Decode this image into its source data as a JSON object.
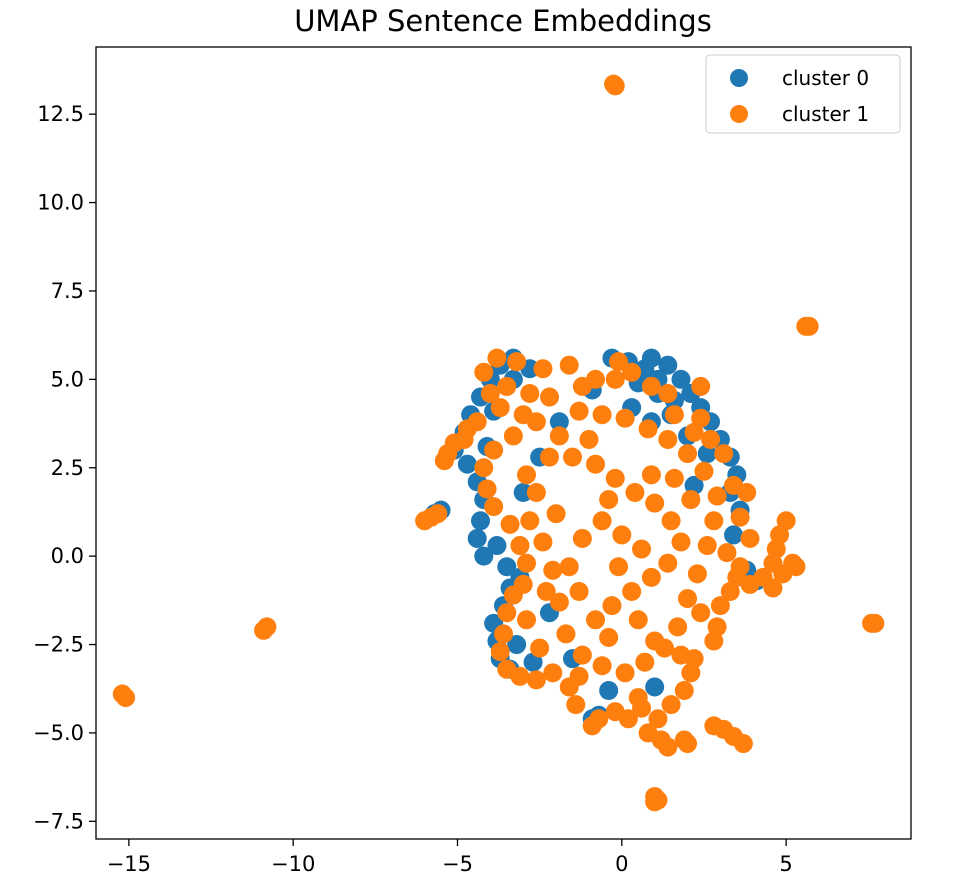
{
  "chart_data": {
    "type": "scatter",
    "title": "UMAP Sentence Embeddings",
    "xlabel": "",
    "ylabel": "",
    "xlim": [
      -16.0,
      8.8
    ],
    "ylim": [
      -8.0,
      14.4
    ],
    "xticks": [
      -15,
      -10,
      -5,
      0,
      5
    ],
    "xtick_labels": [
      "−15",
      "−10",
      "−5",
      "0",
      "5"
    ],
    "yticks": [
      -7.5,
      -5.0,
      -2.5,
      0.0,
      2.5,
      5.0,
      7.5,
      10.0,
      12.5
    ],
    "ytick_labels": [
      "−7.5",
      "−5.0",
      "−2.5",
      "0.0",
      "2.5",
      "5.0",
      "7.5",
      "10.0",
      "12.5"
    ],
    "grid": false,
    "legend_position": "top-right",
    "series": [
      {
        "name": "cluster 0",
        "color": "#1f77b4",
        "points": [
          [
            -3.3,
            5.6
          ],
          [
            -3.7,
            5.4
          ],
          [
            -4.0,
            5.0
          ],
          [
            -4.3,
            4.5
          ],
          [
            -4.6,
            4.0
          ],
          [
            -4.8,
            3.5
          ],
          [
            -5.1,
            3.0
          ],
          [
            -4.7,
            2.6
          ],
          [
            -4.4,
            2.1
          ],
          [
            -4.2,
            1.6
          ],
          [
            -4.3,
            1.0
          ],
          [
            -4.4,
            0.5
          ],
          [
            -4.2,
            0.0
          ],
          [
            -3.8,
            0.3
          ],
          [
            -3.5,
            -0.3
          ],
          [
            -3.4,
            -0.9
          ],
          [
            -3.6,
            -1.4
          ],
          [
            -3.9,
            -1.9
          ],
          [
            -3.8,
            -2.4
          ],
          [
            -3.7,
            -2.9
          ],
          [
            -3.4,
            -3.2
          ],
          [
            -5.7,
            1.2
          ],
          [
            -5.5,
            1.3
          ],
          [
            -0.3,
            5.6
          ],
          [
            0.2,
            5.5
          ],
          [
            0.9,
            5.6
          ],
          [
            1.4,
            5.4
          ],
          [
            1.8,
            5.0
          ],
          [
            2.1,
            4.6
          ],
          [
            2.4,
            4.2
          ],
          [
            2.7,
            3.8
          ],
          [
            3.0,
            3.3
          ],
          [
            3.3,
            2.8
          ],
          [
            3.5,
            2.3
          ],
          [
            3.3,
            1.8
          ],
          [
            3.6,
            1.3
          ],
          [
            3.4,
            0.6
          ],
          [
            3.8,
            -0.4
          ],
          [
            3.9,
            -0.6
          ],
          [
            4.1,
            -0.7
          ],
          [
            0.7,
            5.3
          ],
          [
            1.1,
            5.0
          ],
          [
            -0.9,
            4.7
          ],
          [
            1.6,
            4.4
          ],
          [
            -1.9,
            3.8
          ],
          [
            0.5,
            4.9
          ],
          [
            -0.9,
            -4.6
          ],
          [
            -0.7,
            -4.5
          ],
          [
            -3.1,
            -0.6
          ],
          [
            -2.5,
            2.8
          ],
          [
            -3.3,
            5.0
          ],
          [
            -2.8,
            5.3
          ],
          [
            0.3,
            4.2
          ],
          [
            0.9,
            3.8
          ],
          [
            1.5,
            4.0
          ],
          [
            2.0,
            3.4
          ],
          [
            2.6,
            2.9
          ],
          [
            -1.5,
            -2.9
          ],
          [
            -2.2,
            -1.6
          ],
          [
            -3.0,
            1.8
          ],
          [
            -0.4,
            -3.8
          ],
          [
            1.0,
            -3.7
          ],
          [
            2.2,
            2.0
          ],
          [
            1.1,
            4.6
          ],
          [
            -3.9,
            4.1
          ],
          [
            -4.1,
            3.1
          ],
          [
            -3.2,
            -2.5
          ],
          [
            -2.7,
            -3.0
          ]
        ]
      },
      {
        "name": "cluster 1",
        "color": "#ff7f0e",
        "points": [
          [
            -15.2,
            -3.9
          ],
          [
            -15.1,
            -4.0
          ],
          [
            -10.8,
            -2.0
          ],
          [
            -10.9,
            -2.1
          ],
          [
            -0.2,
            13.3
          ],
          [
            -0.25,
            13.35
          ],
          [
            5.6,
            6.5
          ],
          [
            5.7,
            6.5
          ],
          [
            7.6,
            -1.9
          ],
          [
            7.7,
            -1.9
          ],
          [
            1.0,
            -6.8
          ],
          [
            1.1,
            -6.9
          ],
          [
            1.0,
            -6.95
          ],
          [
            -6.0,
            1.0
          ],
          [
            -5.8,
            1.1
          ],
          [
            -5.6,
            1.2
          ],
          [
            2.8,
            -4.8
          ],
          [
            3.1,
            -4.9
          ],
          [
            3.4,
            -5.1
          ],
          [
            3.7,
            -5.3
          ],
          [
            1.9,
            -5.2
          ],
          [
            2.0,
            -5.3
          ],
          [
            5.0,
            1.0
          ],
          [
            4.8,
            0.6
          ],
          [
            4.7,
            0.2
          ],
          [
            4.6,
            -0.2
          ],
          [
            5.2,
            -0.2
          ],
          [
            4.9,
            -0.5
          ],
          [
            4.6,
            -0.9
          ],
          [
            5.3,
            -0.3
          ],
          [
            2.4,
            4.8
          ],
          [
            -0.1,
            5.5
          ],
          [
            -1.6,
            5.4
          ],
          [
            -2.4,
            5.3
          ],
          [
            -3.2,
            5.5
          ],
          [
            -3.8,
            5.6
          ],
          [
            -4.2,
            5.2
          ],
          [
            -4.0,
            4.6
          ],
          [
            -3.7,
            4.2
          ],
          [
            -4.4,
            3.8
          ],
          [
            -4.8,
            3.3
          ],
          [
            -5.3,
            2.9
          ],
          [
            -5.4,
            2.7
          ],
          [
            -3.3,
            3.4
          ],
          [
            -2.6,
            3.8
          ],
          [
            -2.2,
            4.5
          ],
          [
            -1.2,
            4.8
          ],
          [
            -0.8,
            5.0
          ],
          [
            -0.2,
            5.0
          ],
          [
            0.3,
            5.2
          ],
          [
            0.9,
            4.8
          ],
          [
            1.4,
            4.6
          ],
          [
            1.6,
            4.0
          ],
          [
            2.2,
            3.5
          ],
          [
            2.7,
            3.3
          ],
          [
            3.1,
            2.9
          ],
          [
            3.4,
            2.0
          ],
          [
            3.8,
            1.8
          ],
          [
            3.6,
            1.1
          ],
          [
            3.9,
            0.5
          ],
          [
            3.6,
            -0.3
          ],
          [
            3.5,
            -0.6
          ],
          [
            3.0,
            -1.4
          ],
          [
            2.9,
            -2.0
          ],
          [
            2.4,
            -1.6
          ],
          [
            2.8,
            -2.4
          ],
          [
            2.2,
            -2.9
          ],
          [
            2.1,
            -3.3
          ],
          [
            1.9,
            -3.8
          ],
          [
            1.5,
            -4.2
          ],
          [
            1.1,
            -4.6
          ],
          [
            0.8,
            -5.0
          ],
          [
            1.2,
            -5.2
          ],
          [
            1.4,
            -5.4
          ],
          [
            0.5,
            -4.0
          ],
          [
            -0.2,
            -4.4
          ],
          [
            -0.7,
            -4.6
          ],
          [
            -0.9,
            -4.8
          ],
          [
            -1.3,
            -3.4
          ],
          [
            -1.6,
            -3.7
          ],
          [
            -2.1,
            -3.3
          ],
          [
            -2.6,
            -3.5
          ],
          [
            -3.1,
            -3.4
          ],
          [
            -3.5,
            -3.2
          ],
          [
            -3.7,
            -2.7
          ],
          [
            -3.6,
            -2.2
          ],
          [
            -3.5,
            -1.6
          ],
          [
            -3.3,
            -1.1
          ],
          [
            -3.0,
            -0.8
          ],
          [
            -2.9,
            -0.2
          ],
          [
            -3.1,
            0.3
          ],
          [
            -3.4,
            0.9
          ],
          [
            -3.9,
            1.4
          ],
          [
            -4.1,
            1.9
          ],
          [
            -4.2,
            2.5
          ],
          [
            -3.9,
            3.0
          ],
          [
            -2.9,
            2.3
          ],
          [
            -2.6,
            1.8
          ],
          [
            -2.8,
            1.0
          ],
          [
            -2.4,
            0.4
          ],
          [
            -2.1,
            -0.4
          ],
          [
            -1.9,
            -1.3
          ],
          [
            -1.7,
            -2.2
          ],
          [
            -1.2,
            -2.8
          ],
          [
            -0.6,
            -3.1
          ],
          [
            0.1,
            -3.3
          ],
          [
            0.7,
            -3.0
          ],
          [
            1.3,
            -2.6
          ],
          [
            1.7,
            -2.0
          ],
          [
            2.0,
            -1.2
          ],
          [
            2.3,
            -0.5
          ],
          [
            2.6,
            0.3
          ],
          [
            2.8,
            1.0
          ],
          [
            2.9,
            1.7
          ],
          [
            2.5,
            2.4
          ],
          [
            2.0,
            2.9
          ],
          [
            1.4,
            3.3
          ],
          [
            0.8,
            3.6
          ],
          [
            0.1,
            3.9
          ],
          [
            -0.6,
            4.0
          ],
          [
            -1.3,
            4.1
          ],
          [
            -1.9,
            3.4
          ],
          [
            -1.5,
            2.8
          ],
          [
            -0.8,
            2.6
          ],
          [
            -0.2,
            2.2
          ],
          [
            0.4,
            1.8
          ],
          [
            1.0,
            1.5
          ],
          [
            1.5,
            1.0
          ],
          [
            1.8,
            0.4
          ],
          [
            1.4,
            -0.2
          ],
          [
            0.9,
            -0.6
          ],
          [
            0.3,
            -1.0
          ],
          [
            -0.3,
            -1.4
          ],
          [
            -0.8,
            -1.8
          ],
          [
            -1.3,
            -1.0
          ],
          [
            -1.6,
            -0.3
          ],
          [
            -1.2,
            0.5
          ],
          [
            -0.6,
            1.0
          ],
          [
            0.0,
            0.6
          ],
          [
            0.6,
            0.2
          ],
          [
            -0.1,
            -0.3
          ],
          [
            -0.4,
            1.6
          ],
          [
            0.9,
            2.3
          ],
          [
            1.6,
            2.2
          ],
          [
            2.1,
            1.6
          ],
          [
            -2.0,
            1.2
          ],
          [
            -2.2,
            2.8
          ],
          [
            -1.0,
            3.3
          ],
          [
            0.5,
            -1.8
          ],
          [
            1.0,
            -2.4
          ],
          [
            -0.4,
            -2.3
          ],
          [
            -2.5,
            -2.6
          ],
          [
            -2.9,
            -1.8
          ],
          [
            -2.3,
            -1.0
          ],
          [
            2.4,
            3.9
          ],
          [
            3.2,
            0.1
          ],
          [
            3.3,
            -1.0
          ],
          [
            3.9,
            -0.8
          ],
          [
            4.3,
            -0.6
          ],
          [
            -4.7,
            3.6
          ],
          [
            -5.1,
            3.2
          ],
          [
            -3.5,
            4.8
          ],
          [
            -2.8,
            4.6
          ],
          [
            -3.0,
            4.0
          ],
          [
            -1.4,
            -4.2
          ],
          [
            0.2,
            -4.6
          ],
          [
            0.6,
            -4.3
          ],
          [
            1.8,
            -2.8
          ]
        ]
      }
    ]
  }
}
